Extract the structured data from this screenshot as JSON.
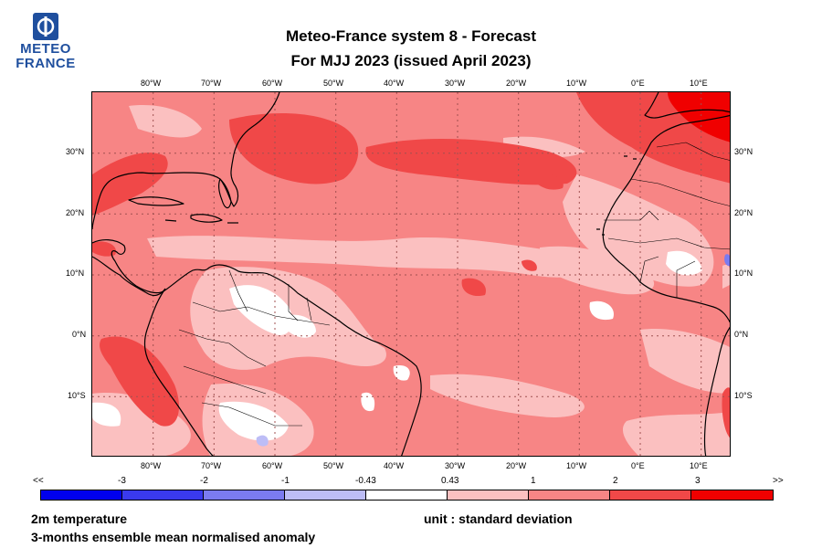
{
  "logo": {
    "line1": "METEO",
    "line2": "FRANCE"
  },
  "header": {
    "title_line1": "Meteo-France system 8  -  Forecast",
    "title_line2": "For MJJ 2023      (issued April 2023)"
  },
  "map": {
    "lon_ticks": [
      "80°W",
      "70°W",
      "60°W",
      "50°W",
      "40°W",
      "30°W",
      "20°W",
      "10°W",
      "0°E",
      "10°E"
    ],
    "lat_ticks": [
      "30°N",
      "20°N",
      "10°N",
      "0°N",
      "10°S"
    ],
    "extent": {
      "lon_min": -90,
      "lon_max": 15,
      "lat_min": -20,
      "lat_max": 40
    }
  },
  "colorbar": {
    "labels": [
      "<<",
      "-3",
      "-2",
      "-1",
      "-0.43",
      "0.43",
      "1",
      "2",
      "3",
      ">>"
    ],
    "colors": [
      "#0000ee",
      "#3a3aee",
      "#7b7bf0",
      "#bdbdf6",
      "#ffffff",
      "#fbc0c0",
      "#f78585",
      "#f04848",
      "#f00000"
    ]
  },
  "footer": {
    "variable": "2m temperature",
    "description": "3-months ensemble mean normalised anomaly",
    "unit": "unit : standard deviation"
  }
}
